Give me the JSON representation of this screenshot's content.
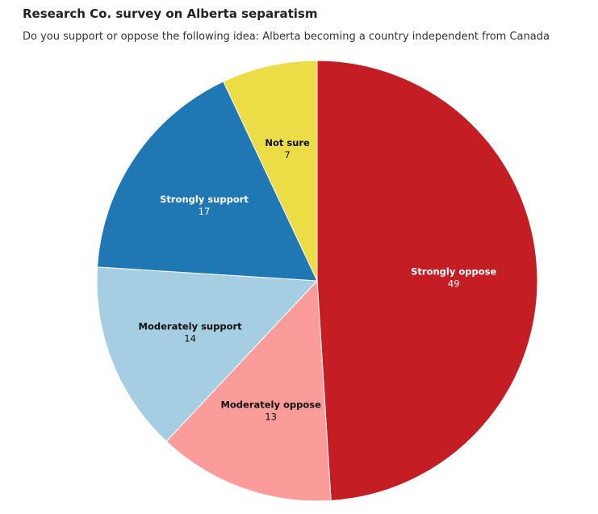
{
  "title": "Research Co. survey on Alberta separatism",
  "subtitle": "Do you support or oppose the following idea: Alberta becoming a country independent from Canada",
  "chart_data": {
    "type": "pie",
    "title": "Research Co. survey on Alberta separatism",
    "subtitle": "Do you support or oppose the following idea: Alberta becoming a country independent from Canada",
    "start_angle_deg": 0,
    "direction": "clockwise",
    "legend": "none",
    "slices": [
      {
        "label": "Strongly oppose",
        "value": 49,
        "color": "#c41e24",
        "text_color": "#ffffff"
      },
      {
        "label": "Moderately oppose",
        "value": 13,
        "color": "#fb9b9a",
        "text_color": "#111111"
      },
      {
        "label": "Moderately support",
        "value": 14,
        "color": "#a6cee3",
        "text_color": "#111111"
      },
      {
        "label": "Strongly support",
        "value": 17,
        "color": "#1f78b4",
        "text_color": "#ffffff"
      },
      {
        "label": "Not sure",
        "value": 7,
        "color": "#ecdc46",
        "text_color": "#111111"
      }
    ]
  }
}
